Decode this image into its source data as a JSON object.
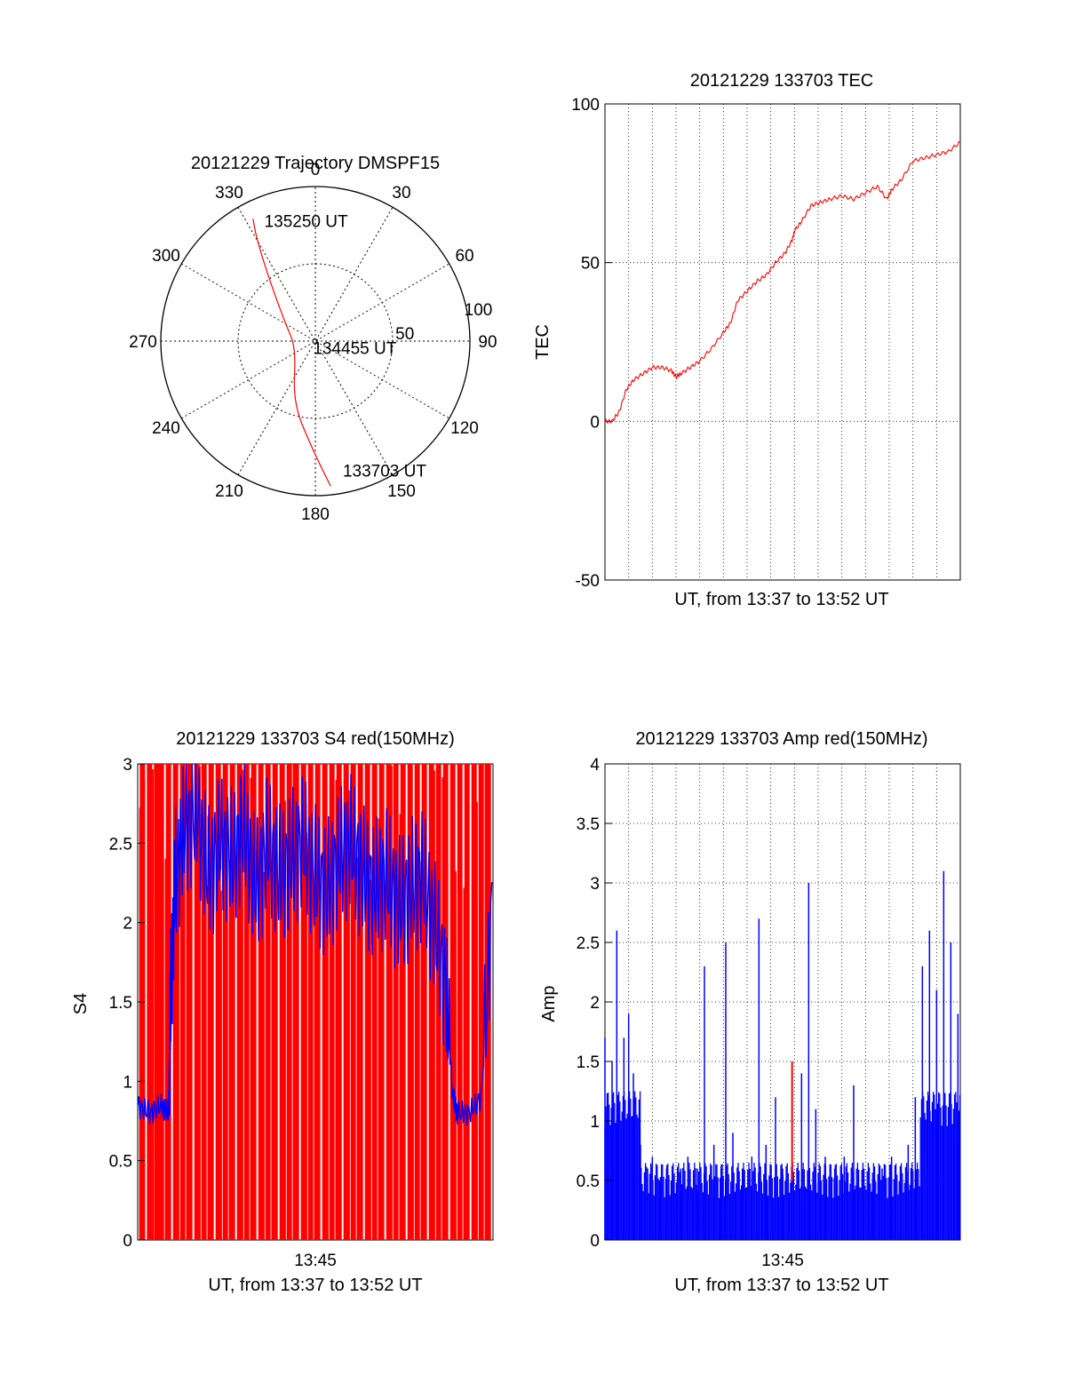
{
  "chart_data": [
    {
      "type": "polar-trajectory",
      "title": "20121229 Trajectory DMSPF15",
      "azimuth_labels": [
        "0",
        "30",
        "60",
        "90",
        "120",
        "150",
        "180",
        "210",
        "240",
        "270",
        "300",
        "330"
      ],
      "elevation_labels": [
        "50",
        "100"
      ],
      "grid": true,
      "series": [
        {
          "color": "#ff0000",
          "points": [
            {
              "az": 174,
              "el": 5
            },
            {
              "az": 182,
              "el": 28
            },
            {
              "az": 200,
              "el": 52
            },
            {
              "az": 250,
              "el": 78
            },
            {
              "az": 300,
              "el": 70
            },
            {
              "az": 322,
              "el": 48
            },
            {
              "az": 330,
              "el": 22
            },
            {
              "az": 333,
              "el": 10
            }
          ]
        }
      ],
      "annotations": [
        {
          "text": "135250 UT",
          "az": 337,
          "el": 14
        },
        {
          "text": "134455 UT",
          "az": 200,
          "el": 86
        },
        {
          "text": "133703 UT",
          "az": 168,
          "el": 13
        }
      ]
    },
    {
      "type": "line",
      "title": "20121229 133703 TEC",
      "xlabel": "UT, from 13:37 to 13:52 UT",
      "ylabel": "TEC",
      "xlim": [
        0,
        15
      ],
      "ylim": [
        -50,
        100
      ],
      "yticks": [
        "-50",
        "0",
        "50",
        "100"
      ],
      "grid": true,
      "series": [
        {
          "color": "#ff0000",
          "x": [
            0,
            0.3,
            0.6,
            0.9,
            1.2,
            1.6,
            2.0,
            2.4,
            2.8,
            3.0,
            3.2,
            3.6,
            4.0,
            4.5,
            5.0,
            5.3,
            5.6,
            6.0,
            6.4,
            6.8,
            7.2,
            7.6,
            7.9,
            8.0,
            8.3,
            8.7,
            9.1,
            9.5,
            10.0,
            10.5,
            11.0,
            11.5,
            11.9,
            12.1,
            12.5,
            13.0,
            13.5,
            14.0,
            14.5,
            15.0
          ],
          "values": [
            0,
            0,
            3,
            10,
            13,
            15,
            17,
            17,
            16,
            14,
            15,
            17,
            19,
            23,
            28,
            31,
            38,
            41,
            44,
            46,
            50,
            53,
            57,
            60,
            63,
            68,
            69,
            70,
            71,
            70,
            72,
            74,
            70,
            73,
            76,
            82,
            83,
            84,
            85,
            88
          ]
        }
      ]
    },
    {
      "type": "bar",
      "title": "20121229 133703 S4 red(150MHz)",
      "xlabel": "UT, from 13:37 to 13:52 UT",
      "ylabel": "S4",
      "xlim": [
        0,
        15
      ],
      "ylim": [
        0,
        3
      ],
      "yticks": [
        "0",
        "0.5",
        "1",
        "1.5",
        "2",
        "2.5",
        "3"
      ],
      "xticks": [
        "13:45"
      ],
      "grid": false,
      "series": [
        {
          "name_hidden": "",
          "color": "#ff0000",
          "x": [
            0.2,
            0.5,
            0.8,
            1.0,
            1.3,
            1.6,
            1.9,
            2.2,
            2.5,
            2.8,
            3.1,
            3.4,
            3.7,
            4.0,
            4.3,
            4.6,
            4.9,
            5.2,
            5.5,
            5.8,
            6.1,
            6.4,
            6.7,
            7.0,
            7.3,
            7.6,
            7.9,
            8.2,
            8.5,
            8.8,
            9.1,
            9.4,
            9.7,
            10.0,
            10.3,
            10.6,
            10.9,
            11.2,
            11.5,
            11.8,
            12.1,
            12.4,
            12.7,
            13.0,
            13.3,
            13.6,
            13.9,
            14.2,
            14.5,
            14.8
          ],
          "values": [
            3,
            3,
            3,
            3,
            3,
            3,
            3,
            3,
            3,
            3,
            3,
            3,
            3,
            3,
            3,
            3,
            3,
            3,
            3,
            3,
            3,
            3,
            3,
            3,
            3,
            3,
            3,
            3,
            3,
            3,
            3,
            3,
            3,
            3,
            3,
            3,
            3,
            3,
            3,
            3,
            3,
            3,
            3,
            3,
            3,
            3,
            3,
            3,
            3,
            3
          ]
        },
        {
          "color": "#0000ff",
          "x": [
            0,
            0.5,
            1.0,
            1.3,
            1.4,
            1.6,
            2.0,
            2.5,
            3.0,
            3.5,
            4.0,
            4.5,
            5.0,
            5.5,
            6.0,
            6.5,
            7.0,
            7.5,
            8.0,
            8.5,
            9.0,
            9.5,
            10.0,
            10.5,
            11.0,
            11.5,
            12.0,
            12.5,
            13.0,
            13.3,
            13.5,
            14.0,
            14.5,
            15.0
          ],
          "values": [
            0.85,
            0.8,
            0.85,
            0.8,
            1.6,
            2.3,
            2.6,
            2.7,
            2.3,
            2.5,
            2.4,
            2.6,
            2.2,
            2.5,
            2.3,
            2.4,
            2.5,
            2.3,
            2.2,
            2.4,
            2.5,
            2.3,
            2.2,
            2.3,
            2.1,
            2.2,
            2.3,
            2.0,
            1.6,
            0.9,
            0.8,
            0.8,
            0.9,
            2.2
          ]
        }
      ]
    },
    {
      "type": "bar",
      "title": "20121229 133703 Amp red(150MHz)",
      "xlabel": "UT, from 13:37 to 13:52 UT",
      "ylabel": "Amp",
      "xlim": [
        0,
        15
      ],
      "ylim": [
        0,
        4
      ],
      "yticks": [
        "0",
        "0.5",
        "1",
        "1.5",
        "2",
        "2.5",
        "3",
        "3.5",
        "4"
      ],
      "xticks": [
        "13:45"
      ],
      "grid": true,
      "series": [
        {
          "color": "#0000ff",
          "x": [
            0,
            0.3,
            0.5,
            0.8,
            1.0,
            1.2,
            1.5,
            1.8,
            2.0,
            2.3,
            2.6,
            2.9,
            3.2,
            3.5,
            3.9,
            4.2,
            4.6,
            4.9,
            5.1,
            5.4,
            5.8,
            6.2,
            6.5,
            6.8,
            7.2,
            7.5,
            7.9,
            8.3,
            8.6,
            8.9,
            9.3,
            9.7,
            10.1,
            10.5,
            10.9,
            11.3,
            11.7,
            12.1,
            12.5,
            12.8,
            13.1,
            13.4,
            13.7,
            14.0,
            14.3,
            14.6,
            14.9
          ],
          "values": [
            1.7,
            1.5,
            2.6,
            1.7,
            1.9,
            1.4,
            0.8,
            0.6,
            0.7,
            0.5,
            0.6,
            0.5,
            0.6,
            0.7,
            0.6,
            2.3,
            0.8,
            0.6,
            2.5,
            0.9,
            0.6,
            0.7,
            2.7,
            0.8,
            1.2,
            0.6,
            0.5,
            1.4,
            3.0,
            1.1,
            0.7,
            0.6,
            0.7,
            1.3,
            0.6,
            0.5,
            0.6,
            0.7,
            0.6,
            0.8,
            1.2,
            2.3,
            2.6,
            2.1,
            3.1,
            2.5,
            1.9
          ]
        },
        {
          "color": "#ff0000",
          "x": [
            7.9
          ],
          "values": [
            1.5
          ]
        }
      ]
    }
  ]
}
